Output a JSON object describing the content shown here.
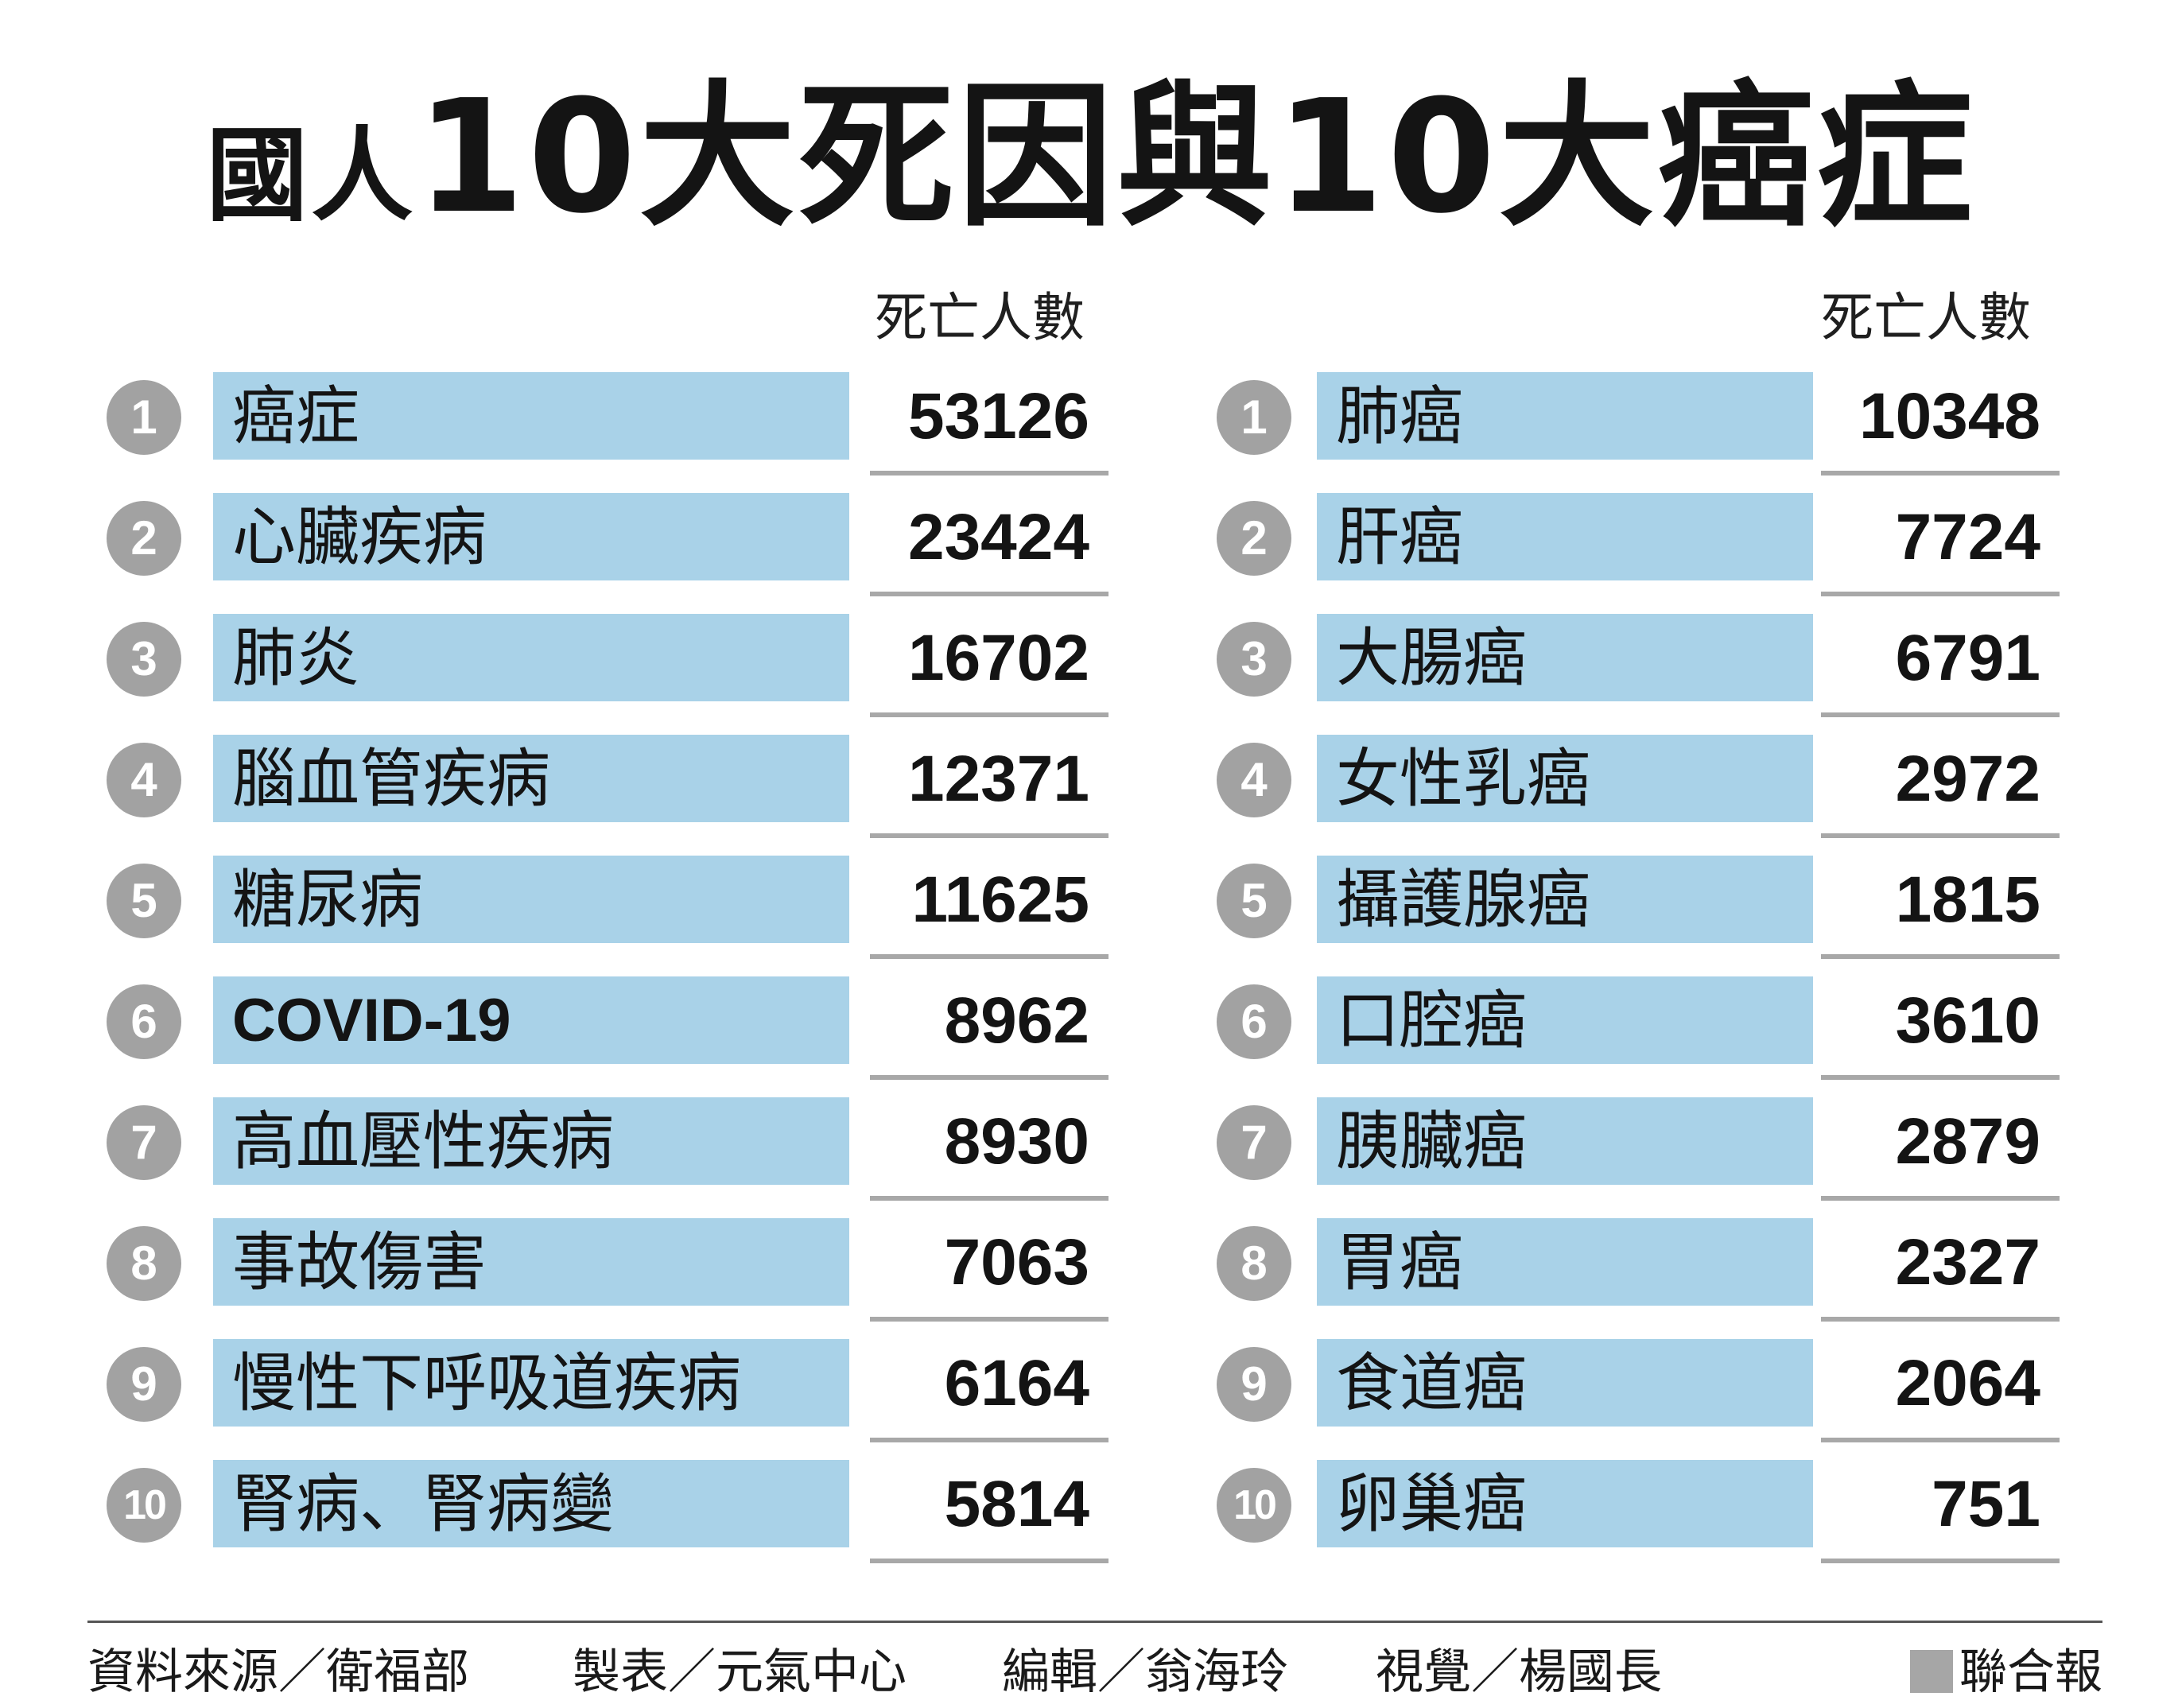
{
  "title_main": "國人",
  "title_rest": "10大死因與10大癌症",
  "column_header": "死亡人數",
  "chart_data": [
    {
      "type": "table",
      "columns": [
        "rank",
        "cause",
        "死亡人數"
      ],
      "rows": [
        {
          "rank": "1",
          "label": "癌症",
          "value": "53126"
        },
        {
          "rank": "2",
          "label": "心臟疾病",
          "value": "23424"
        },
        {
          "rank": "3",
          "label": "肺炎",
          "value": "16702"
        },
        {
          "rank": "4",
          "label": "腦血管疾病",
          "value": "12371"
        },
        {
          "rank": "5",
          "label": "糖尿病",
          "value": "11625"
        },
        {
          "rank": "6",
          "label": "COVID-19",
          "value": "8962"
        },
        {
          "rank": "7",
          "label": "高血壓性疾病",
          "value": "8930"
        },
        {
          "rank": "8",
          "label": "事故傷害",
          "value": "7063"
        },
        {
          "rank": "9",
          "label": "慢性下呼吸道疾病",
          "value": "6164"
        },
        {
          "rank": "10",
          "label": "腎病、腎病變",
          "value": "5814"
        }
      ]
    },
    {
      "type": "table",
      "columns": [
        "rank",
        "cancer",
        "死亡人數"
      ],
      "rows": [
        {
          "rank": "1",
          "label": "肺癌",
          "value": "10348"
        },
        {
          "rank": "2",
          "label": "肝癌",
          "value": "7724"
        },
        {
          "rank": "3",
          "label": "大腸癌",
          "value": "6791"
        },
        {
          "rank": "4",
          "label": "女性乳癌",
          "value": "2972"
        },
        {
          "rank": "5",
          "label": "攝護腺癌",
          "value": "1815"
        },
        {
          "rank": "6",
          "label": "口腔癌",
          "value": "3610"
        },
        {
          "rank": "7",
          "label": "胰臟癌",
          "value": "2879"
        },
        {
          "rank": "8",
          "label": "胃癌",
          "value": "2327"
        },
        {
          "rank": "9",
          "label": "食道癌",
          "value": "2064"
        },
        {
          "rank": "10",
          "label": "卵巢癌",
          "value": "751"
        }
      ]
    }
  ],
  "footer": {
    "source": "資料來源／衛福部",
    "table_by": "製表／元氣中心",
    "editor": "編輯／翁海玲",
    "visual": "視覺／楊國長",
    "brand": "聯合報"
  },
  "colors": {
    "bar": "#a9d2e8",
    "badge": "#a2a2a2",
    "rule": "#a8a8a8"
  }
}
